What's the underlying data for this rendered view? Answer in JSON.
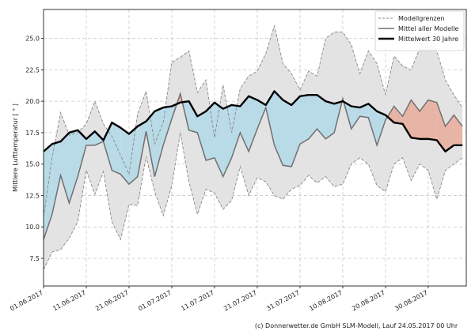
{
  "chart_data": {
    "type": "area",
    "ylabel": "Mittlere Lufttemperatur [ ° ]",
    "xlabel": "",
    "ylim": [
      5.3,
      27.3
    ],
    "xlim": [
      "01.06.2017",
      "07.09.2017"
    ],
    "grid": true,
    "legend_position": "top-right",
    "y_ticks": [
      "7.5",
      "10.0",
      "12.5",
      "15.0",
      "17.5",
      "20.0",
      "22.5",
      "25.0"
    ],
    "x_ticks": [
      "01.06.2017",
      "11.06.2017",
      "21.06.2017",
      "01.07.2017",
      "11.07.2017",
      "21.07.2017",
      "31.07.2017",
      "10.08.2017",
      "20.08.2017",
      "30.08.2017"
    ],
    "x": [
      "01.06.2017",
      "03.06.2017",
      "05.06.2017",
      "07.06.2017",
      "09.06.2017",
      "11.06.2017",
      "13.06.2017",
      "15.06.2017",
      "17.06.2017",
      "19.06.2017",
      "21.06.2017",
      "23.06.2017",
      "25.06.2017",
      "27.06.2017",
      "29.06.2017",
      "01.07.2017",
      "03.07.2017",
      "05.07.2017",
      "07.07.2017",
      "09.07.2017",
      "11.07.2017",
      "13.07.2017",
      "15.07.2017",
      "17.07.2017",
      "19.07.2017",
      "21.07.2017",
      "23.07.2017",
      "25.07.2017",
      "27.07.2017",
      "29.07.2017",
      "31.07.2017",
      "02.08.2017",
      "04.08.2017",
      "06.08.2017",
      "08.08.2017",
      "10.08.2017",
      "12.08.2017",
      "14.08.2017",
      "16.08.2017",
      "18.08.2017",
      "20.08.2017",
      "22.08.2017",
      "24.08.2017",
      "26.08.2017",
      "28.08.2017",
      "30.08.2017",
      "01.09.2017",
      "03.09.2017",
      "05.09.2017",
      "07.09.2017"
    ],
    "series": [
      {
        "name": "Modellgrenzen",
        "role": "upper",
        "style": "dashed",
        "color": "#888888",
        "values": [
          10.8,
          15.5,
          19.1,
          17.3,
          17.5,
          18.2,
          20.0,
          18.2,
          17.2,
          15.7,
          14.2,
          19.0,
          20.8,
          16.6,
          18.3,
          23.1,
          23.5,
          24.0,
          20.7,
          21.7,
          17.1,
          21.3,
          17.5,
          21.0,
          22.0,
          22.4,
          23.8,
          26.0,
          23.0,
          22.2,
          20.9,
          22.4,
          22.0,
          25.0,
          25.5,
          25.5,
          24.5,
          22.2,
          24.0,
          23.0,
          20.5,
          23.6,
          22.8,
          22.5,
          24.2,
          25.9,
          24.0,
          21.7,
          20.5,
          19.5
        ]
      },
      {
        "name": "Modellgrenzen",
        "role": "lower",
        "style": "dashed",
        "color": "#888888",
        "values": [
          6.6,
          8.0,
          8.2,
          9.1,
          10.4,
          14.5,
          12.6,
          14.4,
          10.4,
          9.0,
          11.8,
          11.7,
          15.6,
          12.8,
          10.9,
          13.3,
          17.5,
          13.6,
          11.0,
          13.0,
          12.7,
          11.4,
          12.1,
          14.8,
          12.5,
          13.9,
          13.6,
          12.5,
          12.2,
          13.0,
          13.3,
          14.1,
          13.5,
          14.0,
          13.2,
          13.4,
          15.0,
          15.5,
          15.0,
          13.3,
          12.8,
          15.0,
          15.5,
          13.7,
          15.0,
          14.5,
          12.2,
          14.5,
          15.0,
          15.5
        ]
      },
      {
        "name": "Mittel aller Modelle",
        "role": "models_mean",
        "color": "#707070",
        "values": [
          9.0,
          11.0,
          14.1,
          11.9,
          14.0,
          16.5,
          16.5,
          16.8,
          14.5,
          14.2,
          13.4,
          14.0,
          17.6,
          14.0,
          16.5,
          18.6,
          20.6,
          17.7,
          17.5,
          15.3,
          15.5,
          14.0,
          15.5,
          17.5,
          16.0,
          17.8,
          19.5,
          16.5,
          14.9,
          14.8,
          16.6,
          17.0,
          17.8,
          17.0,
          17.5,
          20.2,
          17.8,
          18.8,
          18.7,
          16.5,
          18.5,
          19.6,
          18.8,
          20.1,
          19.2,
          20.1,
          19.9,
          18.0,
          18.9,
          18.0
        ]
      },
      {
        "name": "Mittelwert 30 Jahre",
        "role": "climate_mean",
        "color": "#000000",
        "values": [
          16.0,
          16.6,
          16.8,
          17.5,
          17.7,
          17.0,
          17.6,
          16.9,
          18.3,
          17.9,
          17.4,
          18.0,
          18.4,
          19.2,
          19.5,
          19.6,
          19.9,
          20.0,
          18.8,
          19.2,
          19.9,
          19.4,
          19.7,
          19.6,
          20.4,
          20.1,
          19.7,
          20.8,
          20.1,
          19.7,
          20.4,
          20.5,
          20.5,
          20.0,
          19.8,
          20.0,
          19.6,
          19.5,
          19.8,
          19.2,
          18.9,
          18.3,
          18.2,
          17.1,
          17.0,
          17.0,
          16.9,
          16.0,
          16.5,
          16.5
        ]
      }
    ],
    "colors": {
      "band": "#e3e3e3",
      "below_mean_fill": "#b9dbe8",
      "upper_below_mean_fill": "#d8f2fc",
      "above_mean_fill": "#e8b4a6"
    }
  },
  "legend": {
    "items": [
      "Modellgrenzen",
      "Mittel aller Modelle",
      "Mittelwert 30 Jahre"
    ]
  },
  "footer": {
    "credit": "(c) Donnerwetter.de GmbH SLM-Modell, Lauf 24.05.2017 00 Uhr"
  }
}
